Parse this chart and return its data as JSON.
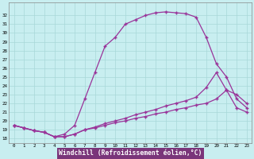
{
  "bg_color": "#c8eef0",
  "grid_color": "#a8d8d8",
  "line_color": "#993399",
  "xlabel": "Windchill (Refroidissement éolien,°C)",
  "hours": [
    0,
    1,
    2,
    3,
    4,
    5,
    6,
    7,
    8,
    9,
    10,
    11,
    12,
    13,
    14,
    15,
    16,
    17,
    18,
    19,
    20,
    21,
    22,
    23
  ],
  "temp": [
    19.5,
    19.2,
    18.9,
    18.7,
    18.2,
    18.5,
    19.5,
    22.5,
    25.5,
    28.5,
    29.5,
    31.0,
    31.5,
    32.0,
    32.3,
    32.4,
    32.3,
    32.2,
    31.8,
    29.5,
    26.5,
    25.0,
    22.5,
    21.5
  ],
  "wc1": [
    19.5,
    19.2,
    18.9,
    18.7,
    18.2,
    18.2,
    18.5,
    19.0,
    19.2,
    19.5,
    19.8,
    20.0,
    20.3,
    20.5,
    20.8,
    21.0,
    21.3,
    21.5,
    21.8,
    22.0,
    22.5,
    23.5,
    21.5,
    21.0
  ],
  "wc2": [
    19.5,
    19.2,
    18.9,
    18.7,
    18.2,
    18.2,
    18.5,
    19.0,
    19.3,
    19.7,
    20.0,
    20.3,
    20.7,
    21.0,
    21.3,
    21.7,
    22.0,
    22.3,
    22.7,
    23.8,
    25.5,
    23.5,
    23.0,
    22.0
  ],
  "ylim": [
    17.5,
    33.5
  ],
  "yticks": [
    18,
    19,
    20,
    21,
    22,
    23,
    24,
    25,
    26,
    27,
    28,
    29,
    30,
    31,
    32
  ],
  "xlim": [
    -0.5,
    23.5
  ]
}
